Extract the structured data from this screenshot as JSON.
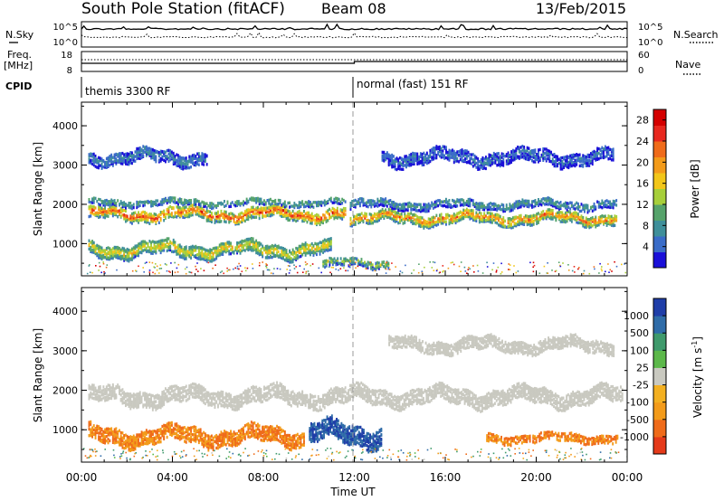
{
  "header": {
    "title": "South Pole Station (fitACF)",
    "beam": "Beam 08",
    "date": "13/Feb/2015"
  },
  "top_panels": {
    "nsky_label": "N.Sky",
    "nsearch_label": "N.Search",
    "noise_ticks_left": [
      "10^5",
      "10^0"
    ],
    "noise_ticks_right": [
      "10^5",
      "10^0"
    ],
    "freq_label_line1": "Freq.",
    "freq_label_line2": "[MHz]",
    "freq_ticks": [
      "18",
      "8"
    ],
    "nave_label": "Nave",
    "nave_ticks": [
      "60",
      "0"
    ],
    "cpid_label": "CPID",
    "cpid_segments": [
      {
        "label": "themis 3300 RF",
        "start_ut": 0
      },
      {
        "label": "normal (fast) 151 RF",
        "start_ut": 12
      }
    ]
  },
  "chart_data": [
    {
      "type": "heatmap",
      "title": "",
      "xlabel": "Time UT",
      "ylabel": "Slant Range [km]",
      "xlim": [
        0,
        24
      ],
      "ylim": [
        180,
        4600
      ],
      "x_ticks": [
        "00:00",
        "04:00",
        "08:00",
        "12:00",
        "16:00",
        "20:00",
        "00:00"
      ],
      "y_ticks": [
        "1000",
        "2000",
        "3000",
        "4000"
      ],
      "colorbar": {
        "label": "Power [dB]",
        "ticks": [
          "4",
          "8",
          "12",
          "16",
          "20",
          "24",
          "28"
        ],
        "range": [
          0,
          30
        ],
        "colors": [
          "#1a0fd8",
          "#3a6cc8",
          "#3f8f9a",
          "#56a36b",
          "#a7cf3a",
          "#f2c619",
          "#f39b1a",
          "#ef6b1a",
          "#e8281f",
          "#d40000"
        ]
      },
      "bands": [
        {
          "t_start": 0.3,
          "t_end": 11.6,
          "range_center": 1750,
          "width": 280,
          "level": 22
        },
        {
          "t_start": 0.3,
          "t_end": 11.6,
          "range_center": 2050,
          "width": 150,
          "level": 10
        },
        {
          "t_start": 0.3,
          "t_end": 11.0,
          "range_center": 850,
          "width": 320,
          "level": 16
        },
        {
          "t_start": 0.3,
          "t_end": 5.5,
          "range_center": 3200,
          "width": 300,
          "level": 6
        },
        {
          "t_start": 11.8,
          "t_end": 23.5,
          "range_center": 1650,
          "width": 260,
          "level": 20
        },
        {
          "t_start": 11.8,
          "t_end": 23.5,
          "range_center": 2000,
          "width": 200,
          "level": 8
        },
        {
          "t_start": 13.2,
          "t_end": 23.4,
          "range_center": 3200,
          "width": 320,
          "level": 5
        },
        {
          "t_start": 10.6,
          "t_end": 13.5,
          "range_center": 500,
          "width": 200,
          "level": 12
        }
      ]
    },
    {
      "type": "heatmap",
      "title": "",
      "xlabel": "Time UT",
      "ylabel": "Slant Range [km]",
      "xlim": [
        0,
        24
      ],
      "ylim": [
        180,
        4600
      ],
      "x_ticks": [
        "00:00",
        "04:00",
        "08:00",
        "12:00",
        "16:00",
        "20:00",
        "00:00"
      ],
      "y_ticks": [
        "1000",
        "2000",
        "3000",
        "4000"
      ],
      "colorbar": {
        "label": "Velocity [m s",
        "label_sup": "-1",
        "label_end": "]",
        "ticks": [
          "1000",
          "500",
          "100",
          "25",
          "-25",
          "-100",
          "-500",
          "-1000"
        ],
        "colors": [
          "#1f3ea8",
          "#2f6ca8",
          "#3f9a6c",
          "#5cb84a",
          "#c9c9c0",
          "#f3b021",
          "#f39b1a",
          "#ef6b1a",
          "#e53a1a"
        ]
      },
      "bands": [
        {
          "t_start": 0.3,
          "t_end": 23.8,
          "range_center": 1850,
          "width": 380,
          "value": 0
        },
        {
          "t_start": 0.3,
          "t_end": 9.8,
          "range_center": 850,
          "width": 380,
          "value": -300
        },
        {
          "t_start": 10.0,
          "t_end": 13.2,
          "range_center": 900,
          "width": 480,
          "value": 700
        },
        {
          "t_start": 13.5,
          "t_end": 23.4,
          "range_center": 3150,
          "width": 300,
          "value": 0
        },
        {
          "t_start": 17.8,
          "t_end": 23.6,
          "range_center": 800,
          "width": 200,
          "value": -300
        }
      ]
    }
  ]
}
